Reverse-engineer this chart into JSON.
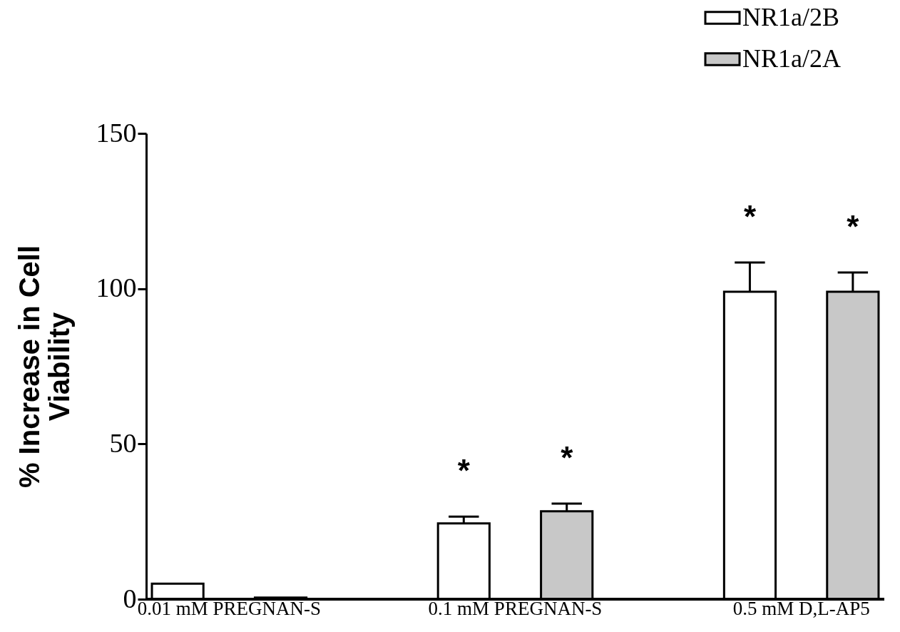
{
  "chart_data": {
    "type": "bar",
    "ylabel": "% Increase in Cell Viability",
    "categories": [
      "0.01 mM PREGNAN-S",
      "0.1 mM PREGNAN-S",
      "0.5 mM D,L-AP5"
    ],
    "series": [
      {
        "name": "NR1a/2B",
        "color": "#ffffff",
        "values": [
          5,
          24.4,
          99
        ],
        "errors": [
          null,
          2.2,
          9.4
        ],
        "value_labels": [
          null,
          "*",
          "*"
        ]
      },
      {
        "name": "NR1a/2A",
        "color": "#c8c8c8",
        "values": [
          0.5,
          28.3,
          99
        ],
        "errors": [
          null,
          2.5,
          6.2
        ],
        "value_labels": [
          null,
          "*",
          "*"
        ]
      }
    ],
    "ylim": [
      0,
      150
    ],
    "yticks": [
      0,
      50,
      100,
      150
    ],
    "grid": false,
    "legend": "top right"
  }
}
